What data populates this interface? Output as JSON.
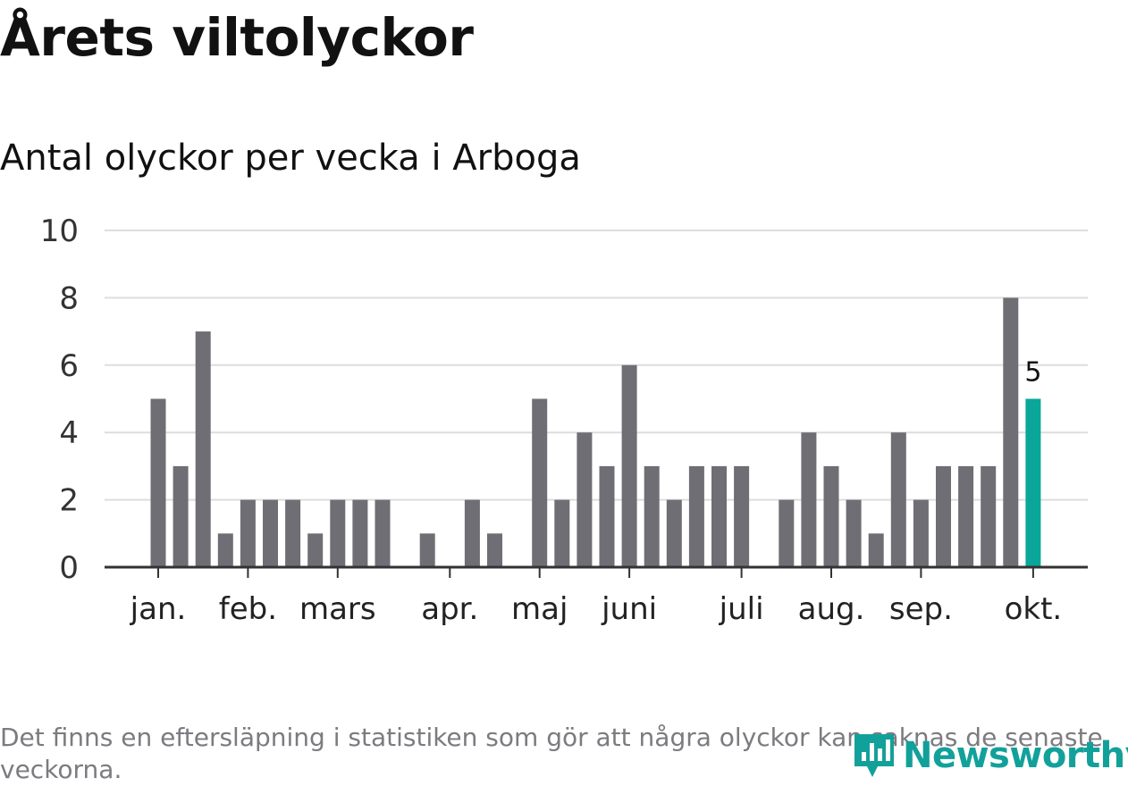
{
  "chart_data": {
    "type": "bar",
    "title": "Årets viltolyckor",
    "subtitle": "Antal olyckor per vecka i Arboga",
    "x": [
      1,
      2,
      3,
      4,
      5,
      6,
      7,
      8,
      9,
      10,
      11,
      12,
      13,
      14,
      15,
      16,
      17,
      18,
      19,
      20,
      21,
      22,
      23,
      24,
      25,
      26,
      27,
      28,
      29,
      30,
      31,
      32,
      33,
      34,
      35,
      36,
      37,
      38,
      39,
      40
    ],
    "values": [
      5,
      3,
      7,
      1,
      2,
      2,
      2,
      1,
      2,
      2,
      2,
      0,
      1,
      0,
      2,
      1,
      0,
      5,
      2,
      4,
      3,
      6,
      3,
      2,
      3,
      3,
      3,
      0,
      2,
      4,
      3,
      2,
      1,
      4,
      2,
      3,
      3,
      3,
      8,
      5
    ],
    "month_labels": [
      {
        "label": "jan.",
        "week": 1
      },
      {
        "label": "feb.",
        "week": 5
      },
      {
        "label": "mars",
        "week": 9
      },
      {
        "label": "apr.",
        "week": 14
      },
      {
        "label": "maj",
        "week": 18
      },
      {
        "label": "juni",
        "week": 22
      },
      {
        "label": "juli",
        "week": 27
      },
      {
        "label": "aug.",
        "week": 31
      },
      {
        "label": "sep.",
        "week": 35
      },
      {
        "label": "okt.",
        "week": 40
      }
    ],
    "ylim": [
      0,
      10
    ],
    "yticks": [
      0,
      2,
      4,
      6,
      8,
      10
    ],
    "grid": true,
    "highlight_index": 39,
    "highlight_label": "5",
    "colors": {
      "bar": "#6f6e74",
      "highlight": "#0aa69a",
      "grid": "#dddddd",
      "axis": "#333333"
    }
  },
  "footnote": "Det finns en eftersläpning i statistiken som gör att några olyckor kan saknas de senaste veckorna.",
  "logo": {
    "text": "Newsworthy",
    "icon": "newsworthy-logo-icon",
    "color": "#12a19a"
  }
}
